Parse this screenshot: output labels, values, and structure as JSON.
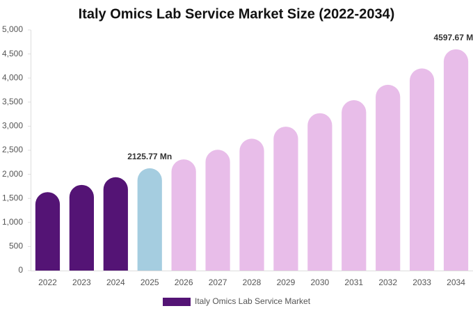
{
  "chart_data": {
    "type": "bar",
    "title": "Italy Omics Lab Service Market Size (2022-2034)",
    "categories": [
      "2022",
      "2023",
      "2024",
      "2025",
      "2026",
      "2027",
      "2028",
      "2029",
      "2030",
      "2031",
      "2032",
      "2033",
      "2034"
    ],
    "series": [
      {
        "name": "Italy Omics Lab Service Market",
        "color": "#541475",
        "values": [
          1630,
          1780,
          1940,
          2125.77,
          2310,
          2510,
          2740,
          2990,
          3270,
          3540,
          3860,
          4200,
          4597.67
        ],
        "value_labels": [
          null,
          null,
          null,
          "2125.77 Mn",
          null,
          null,
          null,
          null,
          null,
          null,
          null,
          null,
          "4597.67 Mn"
        ],
        "colors": [
          "#541475",
          "#541475",
          "#541475",
          "#a5cde0",
          "#e8bde9",
          "#e8bde9",
          "#e8bde9",
          "#e8bde9",
          "#e8bde9",
          "#e8bde9",
          "#e8bde9",
          "#e8bde9",
          "#e8bde9"
        ]
      }
    ],
    "ylim": [
      0,
      5000
    ],
    "yticks": [
      0,
      500,
      {
        "value": 1000,
        "label": "1,000"
      },
      {
        "value": 1500,
        "label": "1,500"
      },
      {
        "value": 2000,
        "label": "2,000"
      },
      {
        "value": 2500,
        "label": "2,500"
      },
      {
        "value": 3000,
        "label": "3,000"
      },
      {
        "value": 3500,
        "label": "3,500"
      },
      {
        "value": 4000,
        "label": "4,000"
      },
      {
        "value": 4500,
        "label": "4,500"
      },
      {
        "value": 5000,
        "label": "5,000"
      }
    ],
    "grid": false,
    "legend": "bottom"
  }
}
